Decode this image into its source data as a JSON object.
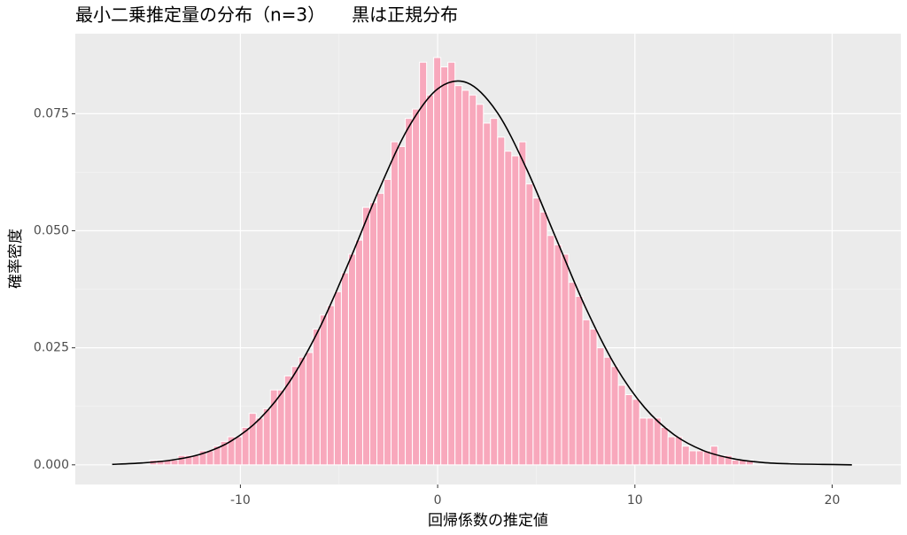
{
  "chart_data": {
    "type": "histogram",
    "title": "最小二乗推定量の分布（n=3）　　黒は正規分布",
    "x_label": "回帰係数の推定値",
    "y_label": "確率密度",
    "color": "#f8a8bc",
    "bins": [
      -14.6,
      -14.24,
      -13.88,
      -13.52,
      -13.16,
      -12.8,
      -12.44,
      -12.08,
      -11.72,
      -11.36,
      -11,
      -10.64,
      -10.28,
      -9.92,
      -9.56,
      -9.2,
      -8.84,
      -8.48,
      -8.12,
      -7.76,
      -7.4,
      -7.04,
      -6.68,
      -6.32,
      -5.96,
      -5.6,
      -5.24,
      -4.88,
      -4.52,
      -4.16,
      -3.8,
      -3.44,
      -3.08,
      -2.72,
      -2.36,
      -2,
      -1.64,
      -1.28,
      -0.92,
      -0.56,
      -0.2,
      0.16,
      0.52,
      0.88,
      1.24,
      1.6,
      1.96,
      2.32,
      2.68,
      3.04,
      3.4,
      3.76,
      4.12,
      4.48,
      4.84,
      5.2,
      5.56,
      5.92,
      6.28,
      6.64,
      7,
      7.36,
      7.72,
      8.08,
      8.44,
      8.8,
      9.16,
      9.52,
      9.88,
      10.24,
      10.6,
      10.96,
      11.32,
      11.68,
      12.04,
      12.4,
      12.76,
      13.12,
      13.48,
      13.84,
      14.2,
      14.56,
      14.92,
      15.28,
      15.64,
      16
    ],
    "values": [
      0.001,
      0.001,
      0.001,
      0.001,
      0.002,
      0.002,
      0.002,
      0.003,
      0.003,
      0.004,
      0.005,
      0.006,
      0.006,
      0.008,
      0.011,
      0.01,
      0.012,
      0.016,
      0.016,
      0.019,
      0.021,
      0.023,
      0.024,
      0.029,
      0.032,
      0.034,
      0.037,
      0.041,
      0.045,
      0.048,
      0.055,
      0.056,
      0.058,
      0.061,
      0.069,
      0.068,
      0.074,
      0.076,
      0.086,
      0.079,
      0.087,
      0.085,
      0.086,
      0.081,
      0.08,
      0.079,
      0.077,
      0.073,
      0.074,
      0.07,
      0.067,
      0.066,
      0.069,
      0.06,
      0.057,
      0.054,
      0.049,
      0.047,
      0.045,
      0.039,
      0.036,
      0.031,
      0.029,
      0.025,
      0.023,
      0.021,
      0.017,
      0.015,
      0.014,
      0.01,
      0.01,
      0.01,
      0.008,
      0.006,
      0.006,
      0.004,
      0.003,
      0.003,
      0.003,
      0.004,
      0.002,
      0.002,
      0.001,
      0.001,
      0.001
    ],
    "curve": {
      "color": "#000000",
      "x": [
        -16.5,
        -15,
        -13.5,
        -12,
        -10.5,
        -9,
        -7.5,
        -6,
        -4.5,
        -3,
        -1.5,
        0,
        1.5,
        3,
        4.5,
        6,
        7.5,
        9,
        10.5,
        12,
        13.5,
        15,
        16.5,
        18,
        19.5,
        21
      ],
      "y": [
        0.0001,
        0.0004,
        0.001,
        0.0023,
        0.005,
        0.0099,
        0.0178,
        0.0291,
        0.0433,
        0.0585,
        0.0719,
        0.0803,
        0.0816,
        0.0754,
        0.0633,
        0.0484,
        0.0336,
        0.0212,
        0.0122,
        0.0064,
        0.003,
        0.0013,
        0.0005,
        0.0002,
        0.0001,
        0.0
      ]
    },
    "xlim": [
      -18.37,
      23.48
    ],
    "ylim": [
      -0.0042,
      0.0921
    ],
    "xticks": [
      -10,
      0,
      10,
      20
    ],
    "yticks": [
      {
        "value": 0,
        "label": "0.000"
      },
      {
        "value": 0.025,
        "label": "0.025"
      },
      {
        "value": 0.05,
        "label": "0.050"
      },
      {
        "value": 0.075,
        "label": "0.075"
      }
    ],
    "grid": true
  }
}
